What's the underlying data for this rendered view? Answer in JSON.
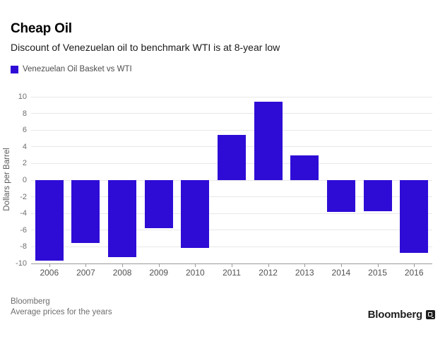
{
  "header": {
    "title": "Cheap Oil",
    "subtitle": "Discount of Venezuelan oil to benchmark WTI is at 8-year low"
  },
  "legend": {
    "label": "Venezuelan Oil Basket vs WTI",
    "swatch_color": "#2e0cd6"
  },
  "chart_data": {
    "type": "bar",
    "categories": [
      "2006",
      "2007",
      "2008",
      "2009",
      "2010",
      "2011",
      "2012",
      "2013",
      "2014",
      "2015",
      "2016"
    ],
    "values": [
      -9.7,
      -7.5,
      -9.2,
      -5.8,
      -8.1,
      5.4,
      9.4,
      3.0,
      -3.8,
      -3.7,
      -8.7
    ],
    "title": "Cheap Oil",
    "subtitle": "Discount of Venezuelan oil to benchmark WTI is at 8-year low",
    "xlabel": "",
    "ylabel": "Dollars per Barrel",
    "ylim": [
      -10,
      10
    ],
    "ytick_step": 2,
    "yticks": [
      10,
      8,
      6,
      4,
      2,
      0,
      -2,
      -4,
      -6,
      -8,
      -10
    ],
    "legend": [
      "Venezuelan Oil Basket vs WTI"
    ],
    "legend_position": "top-left",
    "grid": true,
    "bar_color": "#2e0cd6",
    "gridline_color": "#e8e8e8",
    "axis_color": "#9b9b9b"
  },
  "footer": {
    "source": "Bloomberg",
    "note": "Average prices for the years",
    "brand": "Bloomberg"
  }
}
